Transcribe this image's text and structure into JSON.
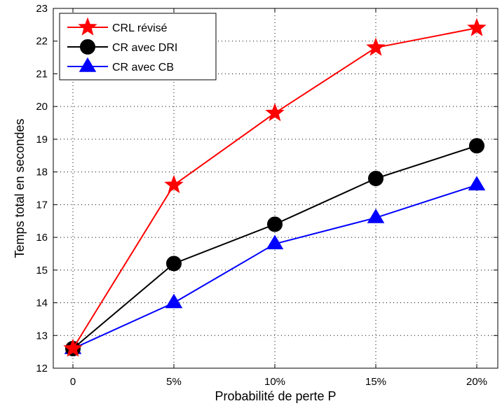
{
  "chart_data": {
    "type": "line",
    "title": "",
    "xlabel": "Probabilité de perte P",
    "ylabel": "Temps total en secondes",
    "categories": [
      "0",
      "5%",
      "10%",
      "15%",
      "20%"
    ],
    "ylim": [
      12,
      23
    ],
    "yticks": [
      "12",
      "13",
      "14",
      "15",
      "16",
      "17",
      "18",
      "19",
      "20",
      "21",
      "22",
      "23"
    ],
    "grid": true,
    "legend_position": "top-left",
    "series": [
      {
        "name": "CRL révisé",
        "values": [
          12.6,
          17.6,
          19.8,
          21.8,
          22.4
        ],
        "color": "#ff0000",
        "marker": "star"
      },
      {
        "name": "CR avec DRI",
        "values": [
          12.6,
          15.2,
          16.4,
          17.8,
          18.8
        ],
        "color": "#000000",
        "marker": "circle"
      },
      {
        "name": "CR avec CB",
        "values": [
          12.6,
          14.0,
          15.8,
          16.6,
          17.6
        ],
        "color": "#0000ff",
        "marker": "triangle"
      }
    ]
  }
}
